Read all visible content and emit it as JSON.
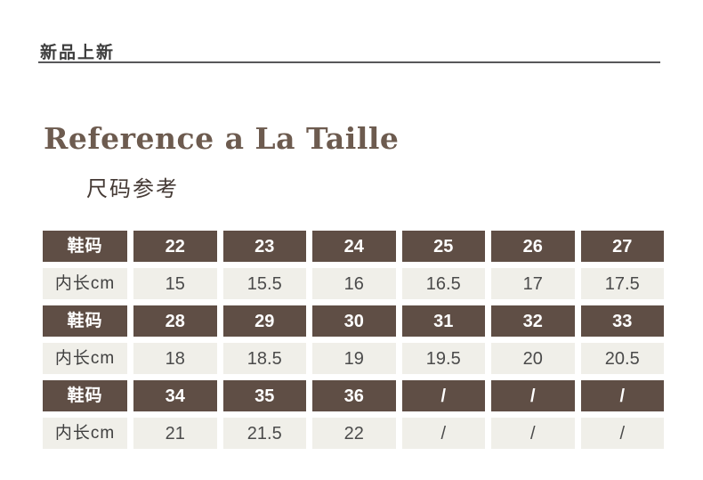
{
  "page": {
    "badge": "新品上新",
    "title": "Reference a La Taille",
    "subtitle": "尺码参考"
  },
  "colors": {
    "header_brown": "#5f4e45",
    "cell_beige": "#f0efe9",
    "title_brown": "#6d5b4f",
    "rule_gray": "#57575a"
  },
  "size_table": {
    "row_header_label": "鞋码",
    "row_value_label": "内长cm",
    "groups": [
      {
        "sizes": [
          "22",
          "23",
          "24",
          "25",
          "26",
          "27"
        ],
        "lengths": [
          "15",
          "15.5",
          "16",
          "16.5",
          "17",
          "17.5"
        ]
      },
      {
        "sizes": [
          "28",
          "29",
          "30",
          "31",
          "32",
          "33"
        ],
        "lengths": [
          "18",
          "18.5",
          "19",
          "19.5",
          "20",
          "20.5"
        ]
      },
      {
        "sizes": [
          "34",
          "35",
          "36",
          "/",
          "/",
          "/"
        ],
        "lengths": [
          "21",
          "21.5",
          "22",
          "/",
          "/",
          "/"
        ]
      }
    ]
  }
}
